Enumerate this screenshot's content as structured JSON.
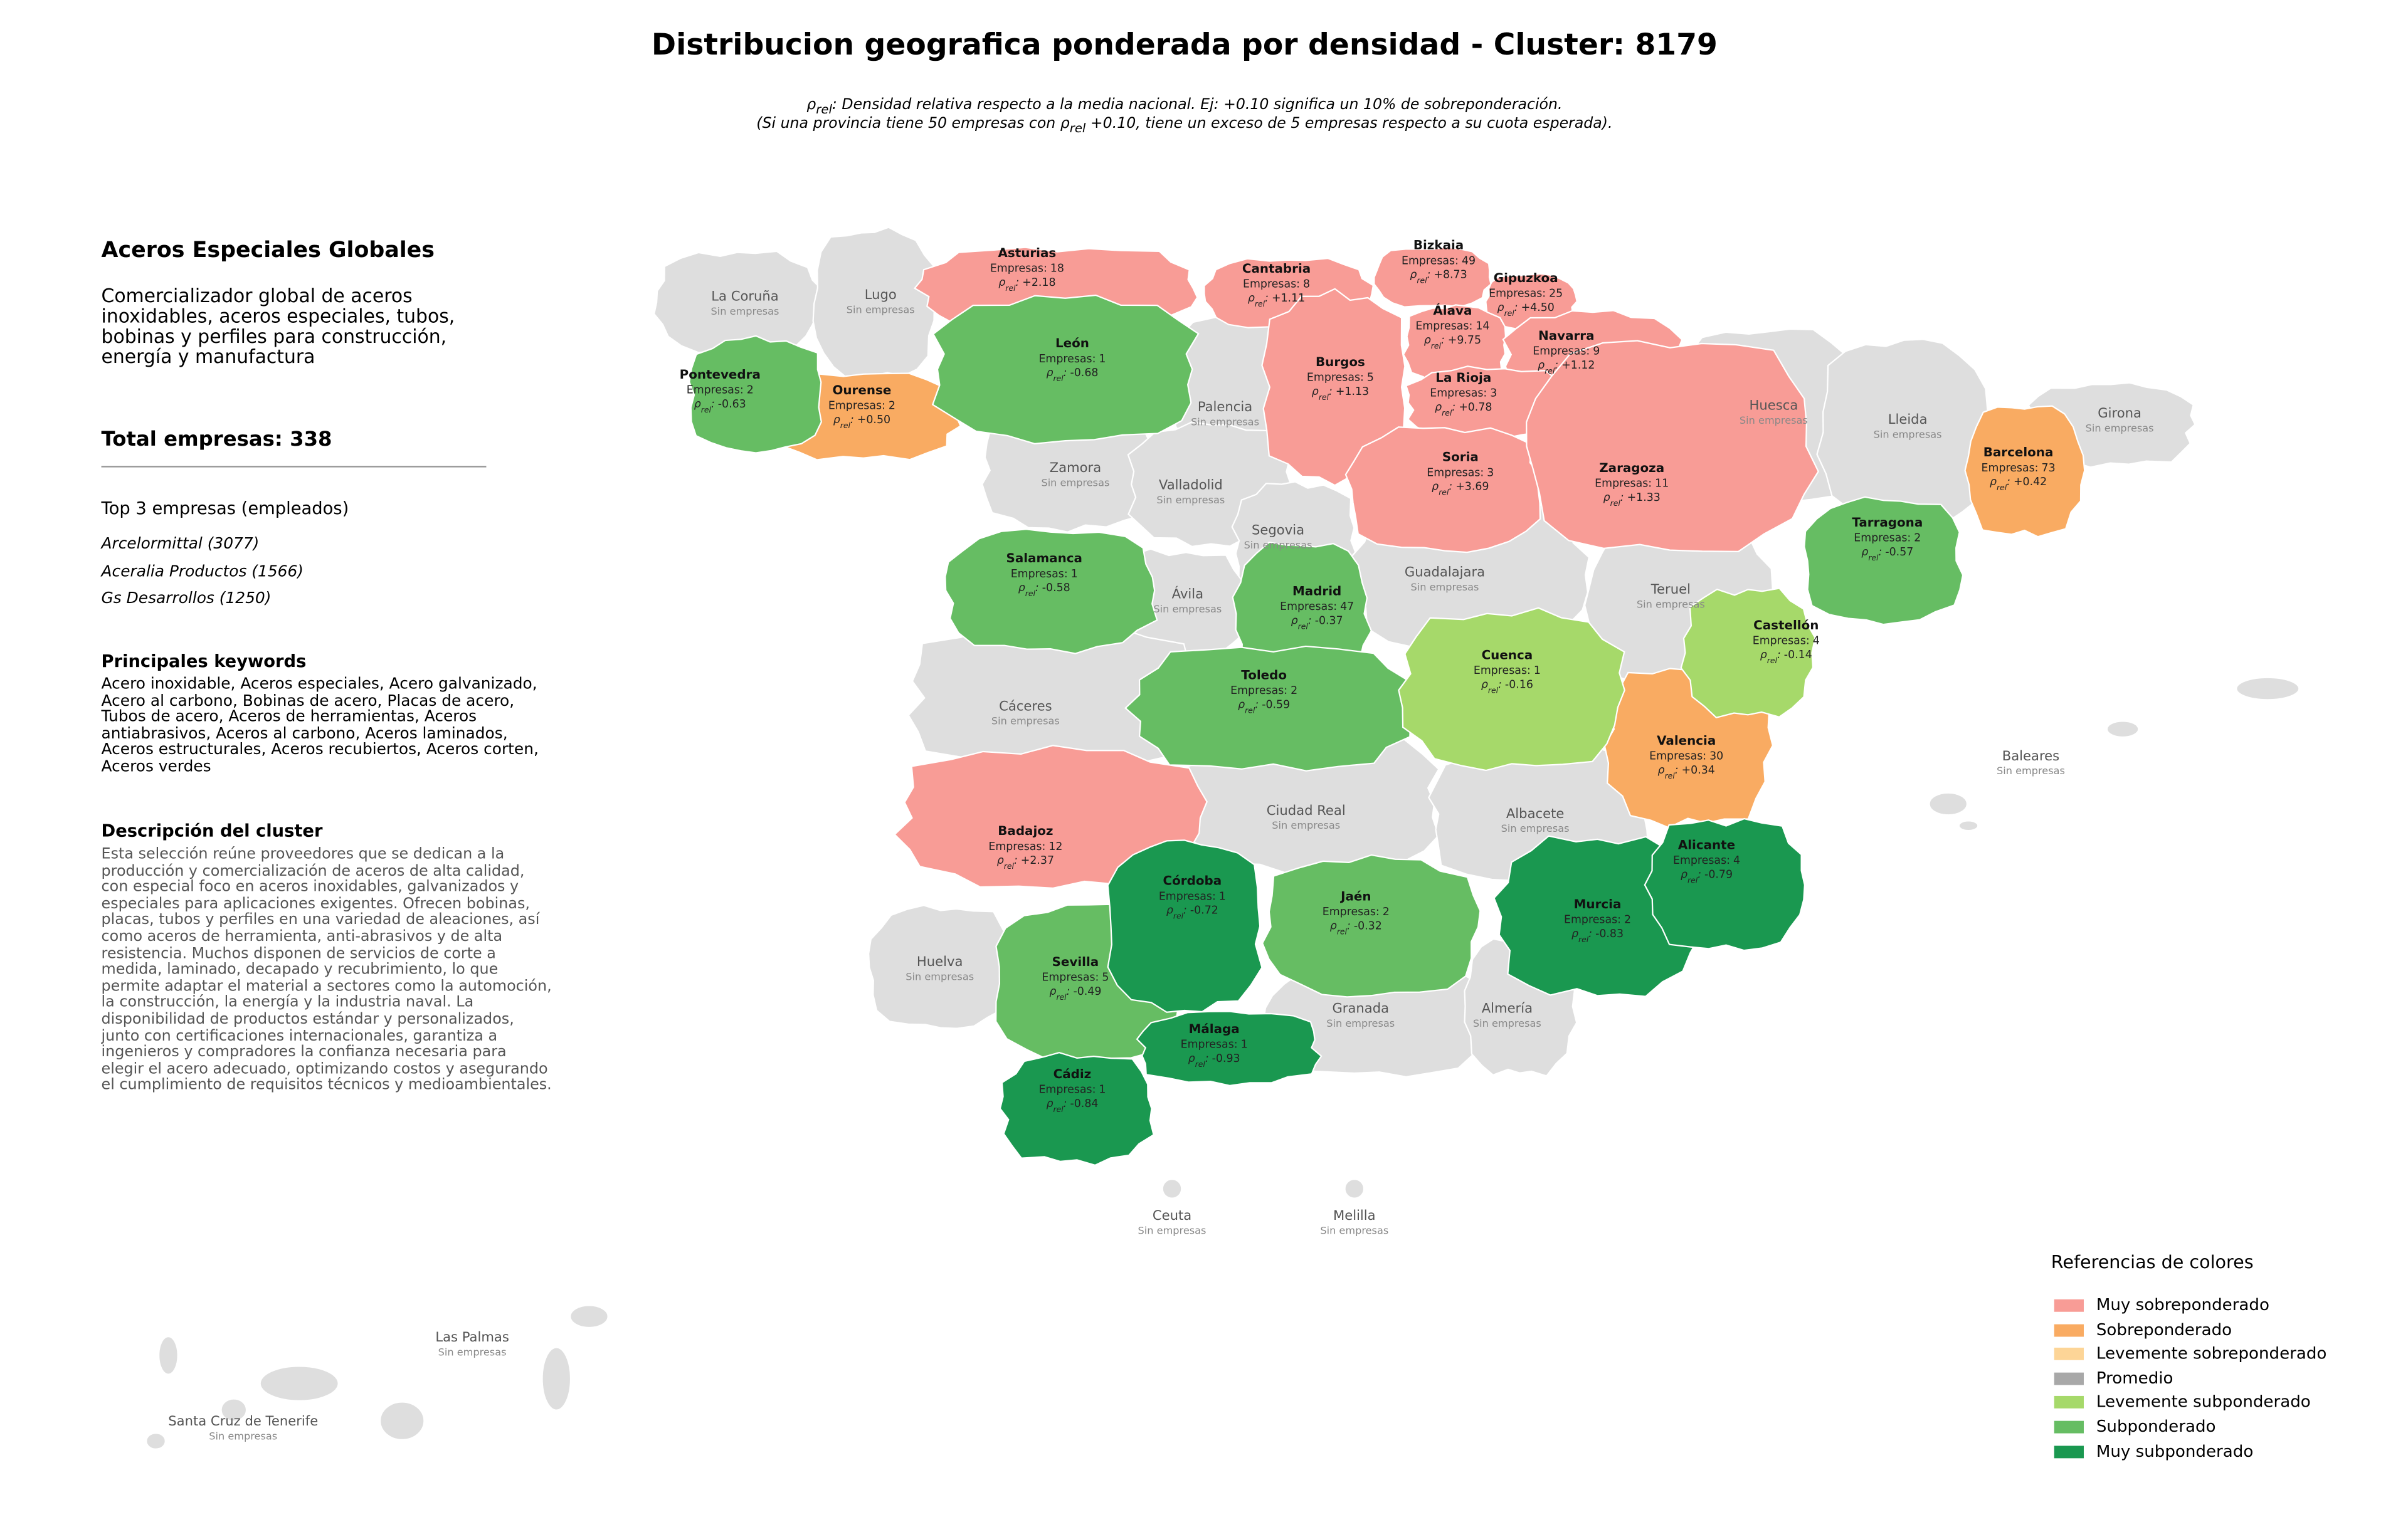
{
  "title": "Distribucion geografica ponderada por densidad - Cluster: 8179",
  "subtitle": [
    [
      {
        "text": "ρ"
      },
      {
        "text": "rel",
        "sub": true
      },
      {
        "text": ": Densidad relativa respecto a la media nacional. Ej: +0.10 significa un 10% de sobreponderación."
      }
    ],
    [
      {
        "text": "(Si una provincia tiene 50 empresas con "
      },
      {
        "text": "ρ"
      },
      {
        "text": "rel",
        "sub": true
      },
      {
        "text": " +0.10, tiene un exceso de 5 empresas respecto a su cuota esperada)."
      }
    ]
  ],
  "panel": {
    "company": "Aceros Especiales Globales",
    "summary": "Comercializador global de aceros inoxidables, aceros especiales, tubos, bobinas y perfiles para construcción, energía y manufactura",
    "total_label": "Total empresas:",
    "total": 338,
    "top_heading": "Top 3 empresas (empleados)",
    "top": [
      "Arcelormittal (3077)",
      "Aceralia Productos (1566)",
      "Gs Desarrollos (1250)"
    ],
    "keywords_heading": "Principales keywords",
    "keywords": "Acero inoxidable, Aceros especiales, Acero galvanizado, Acero al carbono, Bobinas de acero, Placas de acero, Tubos de acero, Aceros de herramientas, Aceros antiabrasivos, Aceros al carbono, Aceros laminados, Aceros estructurales, Aceros recubiertos, Aceros corten, Aceros verdes",
    "description_heading": "Descripción del cluster",
    "description": "Esta selección reúne proveedores que se dedican a la producción y comercialización de aceros de alta calidad, con especial foco en aceros inoxidables, galvanizados y especiales para aplicaciones exigentes. Ofrecen bobinas, placas, tubos y perfiles en una variedad de aleaciones, así como aceros de herramienta, anti-abrasivos y de alta resistencia. Muchos disponen de servicios de corte a medida, laminado, decapado y recubrimiento, lo que permite adaptar el material a sectores como la automoción, la construcción, la energía y la industria naval. La disponibilidad de productos estándar y personalizados, junto con certificaciones internacionales, garantiza a ingenieros y compradores la confianza necesaria para elegir el acero adecuado, optimizando costos y asegurando el cumplimiento de requisitos técnicos y medioambientales."
  },
  "labels": {
    "companies": "Empresas:",
    "density": [
      {
        "text": "ρ"
      },
      {
        "text": "rel",
        "sub": true
      },
      {
        "text": ":"
      }
    ],
    "no_companies": "Sin empresas"
  },
  "provinces": [
    {
      "name": "Asturias",
      "level": 0,
      "count": 18,
      "density": "+2.18"
    },
    {
      "name": "Cantabria",
      "level": 0,
      "count": 8,
      "density": "+1.11"
    },
    {
      "name": "Bizkaia",
      "level": 0,
      "count": 49,
      "density": "+8.73"
    },
    {
      "name": "Gipuzkoa",
      "level": 0,
      "count": 25,
      "density": "+4.50"
    },
    {
      "name": "Álava",
      "level": 0,
      "count": 14,
      "density": "+9.75"
    },
    {
      "name": "Navarra",
      "level": 0,
      "count": 9,
      "density": "+1.12"
    },
    {
      "name": "Burgos",
      "level": 0,
      "count": 5,
      "density": "+1.13"
    },
    {
      "name": "La Rioja",
      "level": 0,
      "count": 3,
      "density": "+0.78"
    },
    {
      "name": "Soria",
      "level": 0,
      "count": 3,
      "density": "+3.69"
    },
    {
      "name": "Zaragoza",
      "level": 0,
      "count": 11,
      "density": "+1.33"
    },
    {
      "name": "Barcelona",
      "level": 1,
      "count": 73,
      "density": "+0.42"
    },
    {
      "name": "Ourense",
      "level": 1,
      "count": 2,
      "density": "+0.50"
    },
    {
      "name": "Valencia",
      "level": 1,
      "count": 30,
      "density": "+0.34"
    },
    {
      "name": "Badajoz",
      "level": 0,
      "count": 12,
      "density": "+2.37"
    },
    {
      "name": "León",
      "level": 5,
      "count": 1,
      "density": "-0.68"
    },
    {
      "name": "Pontevedra",
      "level": 5,
      "count": 2,
      "density": "-0.63"
    },
    {
      "name": "Tarragona",
      "level": 5,
      "count": 2,
      "density": "-0.57"
    },
    {
      "name": "Salamanca",
      "level": 5,
      "count": 1,
      "density": "-0.58"
    },
    {
      "name": "Madrid",
      "level": 5,
      "count": 47,
      "density": "-0.37"
    },
    {
      "name": "Toledo",
      "level": 5,
      "count": 2,
      "density": "-0.59"
    },
    {
      "name": "Castellón",
      "level": 4,
      "count": 4,
      "density": "-0.14"
    },
    {
      "name": "Cuenca",
      "level": 4,
      "count": 1,
      "density": "-0.16"
    },
    {
      "name": "Jaén",
      "level": 5,
      "count": 2,
      "density": "-0.32"
    },
    {
      "name": "Sevilla",
      "level": 5,
      "count": 5,
      "density": "-0.49"
    },
    {
      "name": "Córdoba",
      "level": 6,
      "count": 1,
      "density": "-0.72"
    },
    {
      "name": "Málaga",
      "level": 6,
      "count": 1,
      "density": "-0.93"
    },
    {
      "name": "Cádiz",
      "level": 6,
      "count": 1,
      "density": "-0.84"
    },
    {
      "name": "Murcia",
      "level": 6,
      "count": 2,
      "density": "-0.83"
    },
    {
      "name": "Alicante",
      "level": 6,
      "count": 4,
      "density": "-0.79"
    },
    {
      "name": "La Coruña"
    },
    {
      "name": "Lugo"
    },
    {
      "name": "Palencia"
    },
    {
      "name": "Zamora"
    },
    {
      "name": "Valladolid"
    },
    {
      "name": "Segovia"
    },
    {
      "name": "Ávila"
    },
    {
      "name": "Guadalajara"
    },
    {
      "name": "Teruel"
    },
    {
      "name": "Huesca"
    },
    {
      "name": "Lleida"
    },
    {
      "name": "Girona"
    },
    {
      "name": "Cáceres"
    },
    {
      "name": "Ciudad Real"
    },
    {
      "name": "Albacete"
    },
    {
      "name": "Huelva"
    },
    {
      "name": "Granada"
    },
    {
      "name": "Almería"
    },
    {
      "name": "Baleares"
    },
    {
      "name": "Ceuta"
    },
    {
      "name": "Melilla"
    },
    {
      "name": "Las Palmas"
    },
    {
      "name": "Santa Cruz de Tenerife"
    }
  ],
  "no_data_color": "#dedede",
  "legend": {
    "title": "Referencias de colores",
    "items": [
      {
        "label": "Muy sobreponderado",
        "color": "#f89c96"
      },
      {
        "label": "Sobreponderado",
        "color": "#f9ab62"
      },
      {
        "label": "Levemente sobreponderado",
        "color": "#fdd597"
      },
      {
        "label": "Promedio",
        "color": "#a8a8a8"
      },
      {
        "label": "Levemente subponderado",
        "color": "#a6d96a"
      },
      {
        "label": "Subponderado",
        "color": "#66bd63"
      },
      {
        "label": "Muy subponderado",
        "color": "#1a9850"
      }
    ]
  }
}
